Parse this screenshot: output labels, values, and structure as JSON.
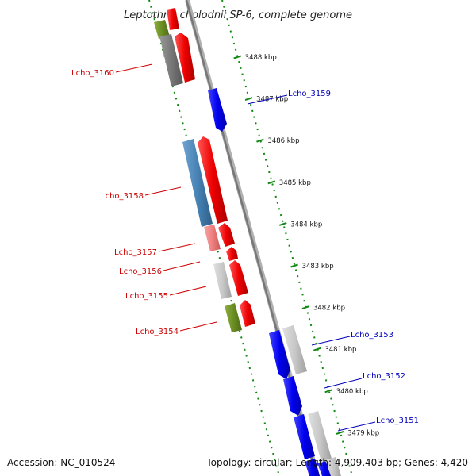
{
  "title": "Leptothrix cholodnii SP-6, complete genome",
  "footer": {
    "accession": "Accession: NC_010524",
    "topology": "Topology: circular; Length: 4,909,403 bp; Genes: 4,420"
  },
  "colors": {
    "forward_gene": "#ee0000",
    "reverse_gene": "#0000ee",
    "backbone": "#808080",
    "ruler": "#118811",
    "label_forward": "#cc0000",
    "label_reverse": "#0000bb",
    "cog_gray": "#777777",
    "cog_olive": "#6b8e23",
    "cog_steelblue": "#4682b4",
    "cog_pink": "#f08080",
    "cog_lightgray": "#c8c8c8"
  },
  "kbp_ticks": [
    {
      "label": "3479 kbp",
      "kbp": 3479
    },
    {
      "label": "3480 kbp",
      "kbp": 3480
    },
    {
      "label": "3481 kbp",
      "kbp": 3481
    },
    {
      "label": "3482 kbp",
      "kbp": 3482
    },
    {
      "label": "3483 kbp",
      "kbp": 3483
    },
    {
      "label": "3484 kbp",
      "kbp": 3484
    },
    {
      "label": "3485 kbp",
      "kbp": 3485
    },
    {
      "label": "3486 kbp",
      "kbp": 3486
    },
    {
      "label": "3487 kbp",
      "kbp": 3487
    },
    {
      "label": "3488 kbp",
      "kbp": 3488
    }
  ],
  "gene_labels": [
    {
      "id": "Lcho_3160",
      "label": "Lcho_3160",
      "strand": "forward"
    },
    {
      "id": "Lcho_3159",
      "label": "Lcho_3159",
      "strand": "reverse"
    },
    {
      "id": "Lcho_3158",
      "label": "Lcho_3158",
      "strand": "forward"
    },
    {
      "id": "Lcho_3157",
      "label": "Lcho_3157",
      "strand": "forward"
    },
    {
      "id": "Lcho_3156",
      "label": "Lcho_3156",
      "strand": "forward"
    },
    {
      "id": "Lcho_3155",
      "label": "Lcho_3155",
      "strand": "forward"
    },
    {
      "id": "Lcho_3154",
      "label": "Lcho_3154",
      "strand": "forward"
    },
    {
      "id": "Lcho_3153",
      "label": "Lcho_3153",
      "strand": "reverse"
    },
    {
      "id": "Lcho_3152",
      "label": "Lcho_3152",
      "strand": "reverse"
    },
    {
      "id": "Lcho_3151",
      "label": "Lcho_3151",
      "strand": "reverse"
    }
  ]
}
